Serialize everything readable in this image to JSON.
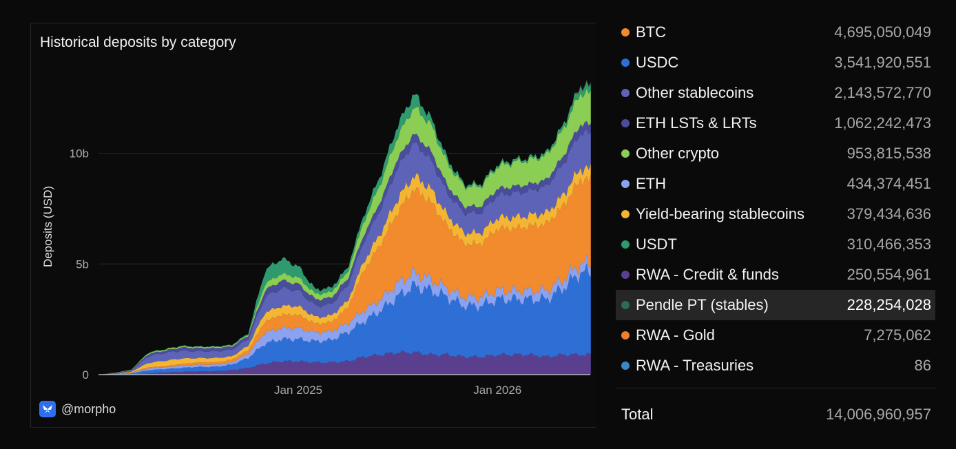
{
  "panel": {
    "title": "Historical deposits by category",
    "brand_handle": "@morpho"
  },
  "chart_data": {
    "type": "area",
    "stacked": true,
    "title": "Historical deposits by category",
    "xlabel": "",
    "ylabel": "Deposits (USD)",
    "ylim": [
      0,
      14000000000
    ],
    "yticks": [
      {
        "value": 0,
        "label": "0"
      },
      {
        "value": 5000000000,
        "label": "5b"
      },
      {
        "value": 10000000000,
        "label": "10b"
      }
    ],
    "x_ticks": [
      {
        "date": "2025-01-01",
        "label": "Jan 2025"
      },
      {
        "date": "2026-01-01",
        "label": "Jan 2026"
      }
    ],
    "grid": "horizontal",
    "x": [
      "2024-01",
      "2024-02",
      "2024-03",
      "2024-04",
      "2024-05",
      "2024-06",
      "2024-07",
      "2024-08",
      "2024-09",
      "2024-10",
      "2024-11",
      "2024-12",
      "2025-01",
      "2025-02",
      "2025-03",
      "2025-04",
      "2025-05",
      "2025-06",
      "2025-07",
      "2025-08",
      "2025-09",
      "2025-10",
      "2025-11",
      "2025-12",
      "2026-01",
      "2026-02",
      "2026-03",
      "2026-04",
      "2026-05",
      "2026-06"
    ],
    "series": [
      {
        "name": "RWA - Credit & funds",
        "values": [
          0,
          0,
          0,
          0.05,
          0.1,
          0.12,
          0.15,
          0.15,
          0.2,
          0.3,
          0.5,
          0.6,
          0.6,
          0.55,
          0.55,
          0.6,
          0.8,
          0.9,
          1.0,
          1.0,
          0.9,
          0.9,
          0.8,
          0.8,
          0.9,
          0.9,
          0.9,
          0.8,
          0.9,
          0.9
        ]
      },
      {
        "name": "USDC",
        "values": [
          0,
          0.02,
          0.05,
          0.15,
          0.15,
          0.18,
          0.2,
          0.2,
          0.25,
          0.45,
          0.9,
          1.0,
          1.0,
          0.95,
          1.0,
          1.3,
          1.6,
          2.0,
          2.5,
          3.0,
          2.9,
          2.6,
          2.3,
          2.3,
          2.5,
          2.5,
          2.5,
          2.6,
          3.0,
          3.7
        ]
      },
      {
        "name": "ETH",
        "values": [
          0,
          0.01,
          0.03,
          0.08,
          0.08,
          0.1,
          0.1,
          0.1,
          0.1,
          0.2,
          0.5,
          0.5,
          0.5,
          0.4,
          0.4,
          0.4,
          0.5,
          0.5,
          0.6,
          0.6,
          0.5,
          0.4,
          0.4,
          0.4,
          0.4,
          0.4,
          0.4,
          0.4,
          0.4,
          0.4
        ]
      },
      {
        "name": "BTC",
        "values": [
          0,
          0.01,
          0.02,
          0.05,
          0.05,
          0.08,
          0.1,
          0.1,
          0.12,
          0.15,
          0.5,
          0.6,
          0.6,
          0.4,
          0.4,
          0.7,
          1.8,
          2.5,
          3.2,
          3.8,
          3.5,
          2.8,
          2.4,
          2.4,
          2.8,
          2.8,
          2.9,
          3.0,
          3.3,
          3.8
        ]
      },
      {
        "name": "Yield-bearing stablecoins",
        "values": [
          0,
          0.01,
          0.03,
          0.2,
          0.25,
          0.25,
          0.2,
          0.2,
          0.15,
          0.2,
          0.4,
          0.4,
          0.4,
          0.3,
          0.3,
          0.3,
          0.4,
          0.5,
          0.6,
          0.6,
          0.6,
          0.5,
          0.5,
          0.5,
          0.5,
          0.5,
          0.5,
          0.5,
          0.5,
          0.5
        ]
      },
      {
        "name": "Other stablecoins",
        "values": [
          0,
          0.02,
          0.05,
          0.3,
          0.35,
          0.35,
          0.3,
          0.3,
          0.3,
          0.3,
          0.7,
          0.8,
          0.7,
          0.5,
          0.5,
          0.7,
          0.9,
          1.1,
          1.4,
          1.5,
          1.3,
          1.0,
          0.9,
          0.9,
          1.0,
          1.1,
          1.1,
          1.2,
          1.4,
          1.6
        ]
      },
      {
        "name": "ETH LSTs & LRTs",
        "values": [
          0,
          0.01,
          0.02,
          0.1,
          0.1,
          0.15,
          0.15,
          0.15,
          0.15,
          0.15,
          0.3,
          0.35,
          0.3,
          0.3,
          0.3,
          0.3,
          0.3,
          0.35,
          0.4,
          0.4,
          0.4,
          0.35,
          0.3,
          0.3,
          0.3,
          0.3,
          0.3,
          0.3,
          0.35,
          0.4
        ]
      },
      {
        "name": "Other crypto",
        "values": [
          0,
          0.01,
          0.02,
          0.05,
          0.05,
          0.05,
          0.05,
          0.05,
          0.05,
          0.05,
          0.3,
          0.3,
          0.3,
          0.25,
          0.25,
          0.3,
          0.6,
          0.8,
          1.0,
          1.2,
          1.2,
          1.0,
          0.9,
          0.9,
          1.0,
          1.1,
          1.1,
          1.1,
          1.2,
          1.4
        ]
      },
      {
        "name": "USDT",
        "values": [
          0,
          0,
          0,
          0.02,
          0.02,
          0.02,
          0.02,
          0.02,
          0.02,
          0.05,
          0.6,
          0.7,
          0.5,
          0.2,
          0.2,
          0.2,
          0.3,
          0.4,
          0.5,
          0.6,
          0.3,
          0.2,
          0.1,
          0.1,
          0.1,
          0.1,
          0.1,
          0.1,
          0.2,
          0.3
        ]
      },
      {
        "name": "Pendle PT (stables)",
        "values": [
          0,
          0,
          0,
          0,
          0,
          0,
          0,
          0,
          0,
          0,
          0,
          0,
          0,
          0,
          0,
          0,
          0,
          0,
          0,
          0,
          0,
          0,
          0,
          0,
          0,
          0,
          0,
          0,
          0,
          0.05
        ]
      },
      {
        "name": "RWA - Gold",
        "values": [
          0,
          0,
          0,
          0,
          0,
          0,
          0,
          0,
          0,
          0,
          0,
          0,
          0,
          0,
          0,
          0,
          0,
          0,
          0,
          0,
          0,
          0,
          0,
          0,
          0,
          0,
          0,
          0,
          0,
          0.01
        ]
      },
      {
        "name": "RWA - Treasuries",
        "values": [
          0,
          0,
          0,
          0,
          0,
          0,
          0,
          0,
          0,
          0,
          0,
          0,
          0,
          0,
          0,
          0,
          0,
          0,
          0,
          0,
          0,
          0,
          0,
          0,
          0,
          0,
          0,
          0,
          0,
          0
        ]
      }
    ],
    "series_units": "billions USD"
  },
  "legend": {
    "items": [
      {
        "label": "BTC",
        "value": "4,695,050,049",
        "color": "#f28a2e"
      },
      {
        "label": "USDC",
        "value": "3,541,920,551",
        "color": "#2e6fd6"
      },
      {
        "label": "Other stablecoins",
        "value": "2,143,572,770",
        "color": "#5d64b8"
      },
      {
        "label": "ETH LSTs & LRTs",
        "value": "1,062,242,473",
        "color": "#4a4d9a"
      },
      {
        "label": "Other crypto",
        "value": "953,815,538",
        "color": "#8ccd54"
      },
      {
        "label": "ETH",
        "value": "434,374,451",
        "color": "#8aa2f0"
      },
      {
        "label": "Yield-bearing stablecoins",
        "value": "379,434,636",
        "color": "#f2b634"
      },
      {
        "label": "USDT",
        "value": "310,466,353",
        "color": "#2e9a6e"
      },
      {
        "label": "RWA - Credit & funds",
        "value": "250,554,961",
        "color": "#5b3f8f"
      },
      {
        "label": "Pendle PT (stables)",
        "value": "228,254,028",
        "color": "#2a6b5a",
        "highlight": true
      },
      {
        "label": "RWA - Gold",
        "value": "7,275,062",
        "color": "#f07f2a"
      },
      {
        "label": "RWA - Treasuries",
        "value": "86",
        "color": "#3b87c8"
      }
    ],
    "total_label": "Total",
    "total_value": "14,006,960,957"
  }
}
